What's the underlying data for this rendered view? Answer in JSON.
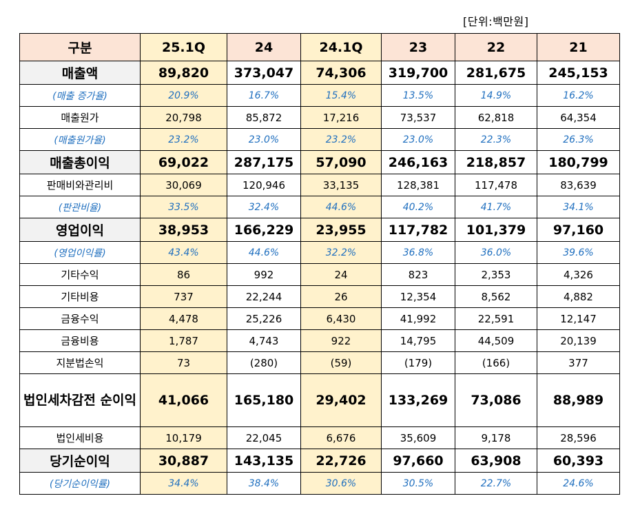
{
  "unit_label": "[단위:백만원]",
  "headers": [
    "구분",
    "25.1Q",
    "24",
    "24.1Q",
    "23",
    "22",
    "21"
  ],
  "rows": [
    {
      "type": "major",
      "label": "매출액",
      "values": [
        "89,820",
        "373,047",
        "74,306",
        "319,700",
        "281,675",
        "245,153"
      ]
    },
    {
      "type": "ratio",
      "label": "(매출 증가율)",
      "values": [
        "20.9%",
        "16.7%",
        "15.4%",
        "13.5%",
        "14.9%",
        "16.2%"
      ]
    },
    {
      "type": "normal",
      "label": "매출원가",
      "values": [
        "20,798",
        "85,872",
        "17,216",
        "73,537",
        "62,818",
        "64,354"
      ]
    },
    {
      "type": "ratio",
      "label": "(매출원가율)",
      "values": [
        "23.2%",
        "23.0%",
        "23.2%",
        "23.0%",
        "22.3%",
        "26.3%"
      ]
    },
    {
      "type": "major",
      "label": "매출총이익",
      "values": [
        "69,022",
        "287,175",
        "57,090",
        "246,163",
        "218,857",
        "180,799"
      ]
    },
    {
      "type": "normal",
      "label": "판매비와관리비",
      "values": [
        "30,069",
        "120,946",
        "33,135",
        "128,381",
        "117,478",
        "83,639"
      ]
    },
    {
      "type": "ratio",
      "label": "(판관비율)",
      "values": [
        "33.5%",
        "32.4%",
        "44.6%",
        "40.2%",
        "41.7%",
        "34.1%"
      ]
    },
    {
      "type": "major",
      "label": "영업이익",
      "values": [
        "38,953",
        "166,229",
        "23,955",
        "117,782",
        "101,379",
        "97,160"
      ]
    },
    {
      "type": "ratio",
      "label": "(영업이익률)",
      "values": [
        "43.4%",
        "44.6%",
        "32.2%",
        "36.8%",
        "36.0%",
        "39.6%"
      ]
    },
    {
      "type": "normal",
      "label": "기타수익",
      "values": [
        "86",
        "992",
        "24",
        "823",
        "2,353",
        "4,326"
      ]
    },
    {
      "type": "normal",
      "label": "기타비용",
      "values": [
        "737",
        "22,244",
        "26",
        "12,354",
        "8,562",
        "4,882"
      ]
    },
    {
      "type": "normal",
      "label": "금융수익",
      "values": [
        "4,478",
        "25,226",
        "6,430",
        "41,992",
        "22,591",
        "12,147"
      ]
    },
    {
      "type": "normal",
      "label": "금융비용",
      "values": [
        "1,787",
        "4,743",
        "922",
        "14,795",
        "44,509",
        "20,139"
      ]
    },
    {
      "type": "normal",
      "label": "지분법손익",
      "values": [
        "73",
        "(280)",
        "(59)",
        "(179)",
        "(166)",
        "377"
      ]
    },
    {
      "type": "major2",
      "label": "법인세차감전 순이익",
      "values": [
        "41,066",
        "165,180",
        "29,402",
        "133,269",
        "73,086",
        "88,989"
      ]
    },
    {
      "type": "normal",
      "label": "법인세비용",
      "values": [
        "10,179",
        "22,045",
        "6,676",
        "35,609",
        "9,178",
        "28,596"
      ]
    },
    {
      "type": "major",
      "label": "당기순이익",
      "values": [
        "30,887",
        "143,135",
        "22,726",
        "97,660",
        "63,908",
        "60,393"
      ]
    },
    {
      "type": "ratio",
      "label": "(당기순이익률)",
      "values": [
        "34.4%",
        "38.4%",
        "30.6%",
        "30.5%",
        "22.7%",
        "24.6%"
      ]
    }
  ]
}
